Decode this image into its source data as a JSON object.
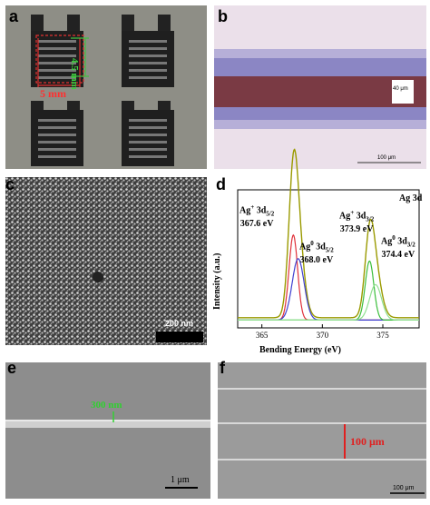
{
  "panels": {
    "a": {
      "letter": "a",
      "dimension_label": "5 mm",
      "vertical_label": "4.5 mm"
    },
    "b": {
      "letter": "b",
      "width_label": "40 μm",
      "scale_label": "100 μm"
    },
    "c": {
      "letter": "c",
      "scale_label": "200 nm"
    },
    "d": {
      "letter": "d",
      "legend": "Ag 3d",
      "peak1_name": "Ag",
      "peak1_sup": "+",
      "peak1_orb": "3d",
      "peak1_sub": "5/2",
      "peak1_energy": "367.6 eV",
      "peak2_name": "Ag",
      "peak2_sup": "0",
      "peak2_orb": "3d",
      "peak2_sub": "5/2",
      "peak2_energy": "368.0 eV",
      "peak3_name": "Ag",
      "peak3_sup": "+",
      "peak3_orb": "3d",
      "peak3_sub": "3/2",
      "peak3_energy": "373.9 eV",
      "peak4_name": "Ag",
      "peak4_sup": "0",
      "peak4_orb": "3d",
      "peak4_sub": "3/2",
      "peak4_energy": "374.4 eV",
      "xlabel": "Bending Energy (eV)",
      "ylabel": "Intensity (a.u.)",
      "xticks": [
        "365",
        "370",
        "375"
      ]
    },
    "e": {
      "letter": "e",
      "width_label": "300 nm",
      "scale_label": "1 μm"
    },
    "f": {
      "letter": "f",
      "pitch_label": "100 μm",
      "scale_label": "100 μm"
    }
  },
  "chart_data": {
    "type": "line",
    "title": "Ag 3d",
    "xlabel": "Bending Energy (eV)",
    "ylabel": "Intensity (a.u.)",
    "xlim": [
      363,
      378
    ],
    "xticks": [
      365,
      370,
      375
    ],
    "series": [
      {
        "name": "envelope",
        "color": "#9a9a00",
        "peaks": [
          [
            367.6,
            1.0,
            0.55
          ],
          [
            368.0,
            0.55,
            0.7
          ],
          [
            373.9,
            0.6,
            0.55
          ],
          [
            374.4,
            0.35,
            0.7
          ]
        ],
        "baseline": 0.04
      },
      {
        "name": "Ag+ 3d5/2",
        "color": "#e0303a",
        "peaks": [
          [
            367.6,
            0.72,
            0.5
          ]
        ],
        "baseline": 0.02
      },
      {
        "name": "Ag0 3d5/2",
        "color": "#4040d0",
        "peaks": [
          [
            368.0,
            0.52,
            0.7
          ]
        ],
        "baseline": 0.02
      },
      {
        "name": "Ag+ 3d3/2",
        "color": "#3cbf3c",
        "peaks": [
          [
            373.9,
            0.5,
            0.5
          ]
        ],
        "baseline": 0.02
      },
      {
        "name": "Ag0 3d3/2",
        "color": "#90e090",
        "peaks": [
          [
            374.4,
            0.3,
            0.7
          ]
        ],
        "baseline": 0.02
      }
    ]
  }
}
